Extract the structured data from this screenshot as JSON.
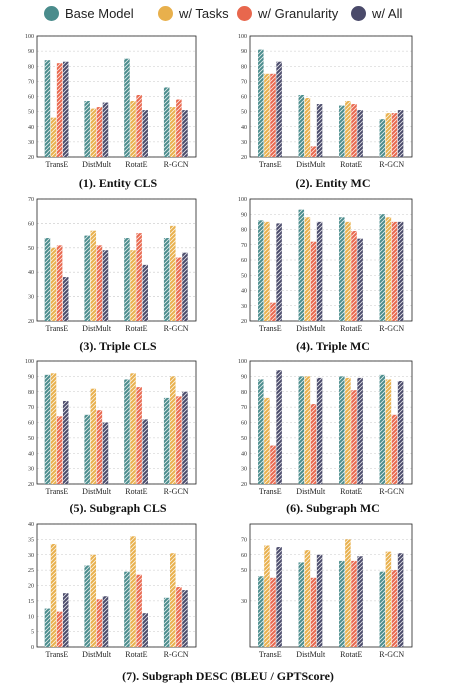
{
  "legend": {
    "items": [
      {
        "label": "Base Model",
        "color": "#4a8c8c"
      },
      {
        "label": "w/ Tasks",
        "color": "#e8b04c"
      },
      {
        "label": "w/ Granularity",
        "color": "#e8674d"
      },
      {
        "label": "w/ All",
        "color": "#4a4a6a"
      }
    ]
  },
  "captions": {
    "c1": "(1). Entity CLS",
    "c2": "(2). Entity MC",
    "c3": "(3). Triple CLS",
    "c4": "(4). Triple MC",
    "c5": "(5). Subgraph CLS",
    "c6": "(6). Subgraph MC",
    "c7": "(7). Subgraph DESC (BLEU / GPTScore)"
  },
  "chart_data": [
    {
      "type": "bar",
      "categories": [
        "TransE",
        "DistMult",
        "RotatE",
        "R-GCN"
      ],
      "ylim": [
        20,
        100
      ],
      "yticks": [
        20,
        30,
        40,
        50,
        60,
        70,
        80,
        90,
        100
      ],
      "series": [
        {
          "name": "Base Model",
          "values": [
            84,
            57,
            85,
            66
          ]
        },
        {
          "name": "w/ Tasks",
          "values": [
            46,
            52,
            57,
            53
          ]
        },
        {
          "name": "w/ Granularity",
          "values": [
            82,
            53,
            61,
            58
          ]
        },
        {
          "name": "w/ All",
          "values": [
            83,
            56,
            51,
            51
          ]
        }
      ]
    },
    {
      "type": "bar",
      "categories": [
        "TransE",
        "DistMult",
        "RotatE",
        "R-GCN"
      ],
      "ylim": [
        20,
        100
      ],
      "yticks": [
        20,
        30,
        40,
        50,
        60,
        70,
        80,
        90,
        100
      ],
      "series": [
        {
          "name": "Base Model",
          "values": [
            91,
            61,
            54,
            45
          ]
        },
        {
          "name": "w/ Tasks",
          "values": [
            75,
            59,
            57,
            49
          ]
        },
        {
          "name": "w/ Granularity",
          "values": [
            75,
            27,
            55,
            49
          ]
        },
        {
          "name": "w/ All",
          "values": [
            83,
            55,
            51,
            51
          ]
        }
      ]
    },
    {
      "type": "bar",
      "categories": [
        "TransE",
        "DistMult",
        "RotatE",
        "R-GCN"
      ],
      "ylim": [
        20,
        70
      ],
      "yticks": [
        20,
        30,
        40,
        50,
        60,
        70
      ],
      "series": [
        {
          "name": "Base Model",
          "values": [
            54,
            55,
            54,
            54
          ]
        },
        {
          "name": "w/ Tasks",
          "values": [
            50,
            57,
            49,
            59
          ]
        },
        {
          "name": "w/ Granularity",
          "values": [
            51,
            51,
            56,
            46
          ]
        },
        {
          "name": "w/ All",
          "values": [
            38,
            49,
            43,
            48
          ]
        }
      ]
    },
    {
      "type": "bar",
      "categories": [
        "TransE",
        "DistMult",
        "RotatE",
        "R-GCN"
      ],
      "ylim": [
        20,
        100
      ],
      "yticks": [
        20,
        30,
        40,
        50,
        60,
        70,
        80,
        90,
        100
      ],
      "series": [
        {
          "name": "Base Model",
          "values": [
            86,
            93,
            88,
            90
          ]
        },
        {
          "name": "w/ Tasks",
          "values": [
            85,
            88,
            85,
            88
          ]
        },
        {
          "name": "w/ Granularity",
          "values": [
            32,
            72,
            79,
            85
          ]
        },
        {
          "name": "w/ All",
          "values": [
            84,
            85,
            74,
            85
          ]
        }
      ]
    },
    {
      "type": "bar",
      "categories": [
        "TransE",
        "DistMult",
        "RotatE",
        "R-GCN"
      ],
      "ylim": [
        20,
        100
      ],
      "yticks": [
        20,
        30,
        40,
        50,
        60,
        70,
        80,
        90,
        100
      ],
      "series": [
        {
          "name": "Base Model",
          "values": [
            91,
            65,
            88,
            76
          ]
        },
        {
          "name": "w/ Tasks",
          "values": [
            92,
            82,
            92,
            90
          ]
        },
        {
          "name": "w/ Granularity",
          "values": [
            64,
            68,
            83,
            77
          ]
        },
        {
          "name": "w/ All",
          "values": [
            74,
            60,
            62,
            80
          ]
        }
      ]
    },
    {
      "type": "bar",
      "categories": [
        "TransE",
        "DistMult",
        "RotatE",
        "R-GCN"
      ],
      "ylim": [
        20,
        100
      ],
      "yticks": [
        20,
        30,
        40,
        50,
        60,
        70,
        80,
        90,
        100
      ],
      "series": [
        {
          "name": "Base Model",
          "values": [
            88,
            90,
            90,
            91
          ]
        },
        {
          "name": "w/ Tasks",
          "values": [
            76,
            90,
            89,
            88
          ]
        },
        {
          "name": "w/ Granularity",
          "values": [
            45,
            72,
            81,
            65
          ]
        },
        {
          "name": "w/ All",
          "values": [
            94,
            89,
            89,
            87
          ]
        }
      ]
    },
    {
      "type": "bar",
      "categories": [
        "TransE",
        "DistMult",
        "RotatE",
        "R-GCN"
      ],
      "ylim": [
        0,
        40
      ],
      "yticks": [
        0,
        5,
        10,
        15,
        20,
        25,
        30,
        35,
        40
      ],
      "series": [
        {
          "name": "Base Model",
          "values": [
            12.5,
            26.5,
            24.5,
            16
          ]
        },
        {
          "name": "w/ Tasks",
          "values": [
            33.5,
            30,
            36,
            30.5
          ]
        },
        {
          "name": "w/ Granularity",
          "values": [
            11.5,
            15.5,
            23.5,
            19.5
          ]
        },
        {
          "name": "w/ All",
          "values": [
            17.5,
            16.5,
            11,
            18.5
          ]
        }
      ]
    },
    {
      "type": "bar",
      "categories": [
        "TransE",
        "DistMult",
        "RotatE",
        "R-GCN"
      ],
      "ylim": [
        0,
        80
      ],
      "yticks": [
        30,
        50,
        60,
        70
      ],
      "series": [
        {
          "name": "Base Model",
          "values": [
            46,
            55,
            56,
            49
          ]
        },
        {
          "name": "w/ Tasks",
          "values": [
            66,
            63,
            70,
            62
          ]
        },
        {
          "name": "w/ Granularity",
          "values": [
            45,
            45,
            56,
            50
          ]
        },
        {
          "name": "w/ All",
          "values": [
            65,
            60,
            59,
            61
          ]
        }
      ]
    }
  ]
}
